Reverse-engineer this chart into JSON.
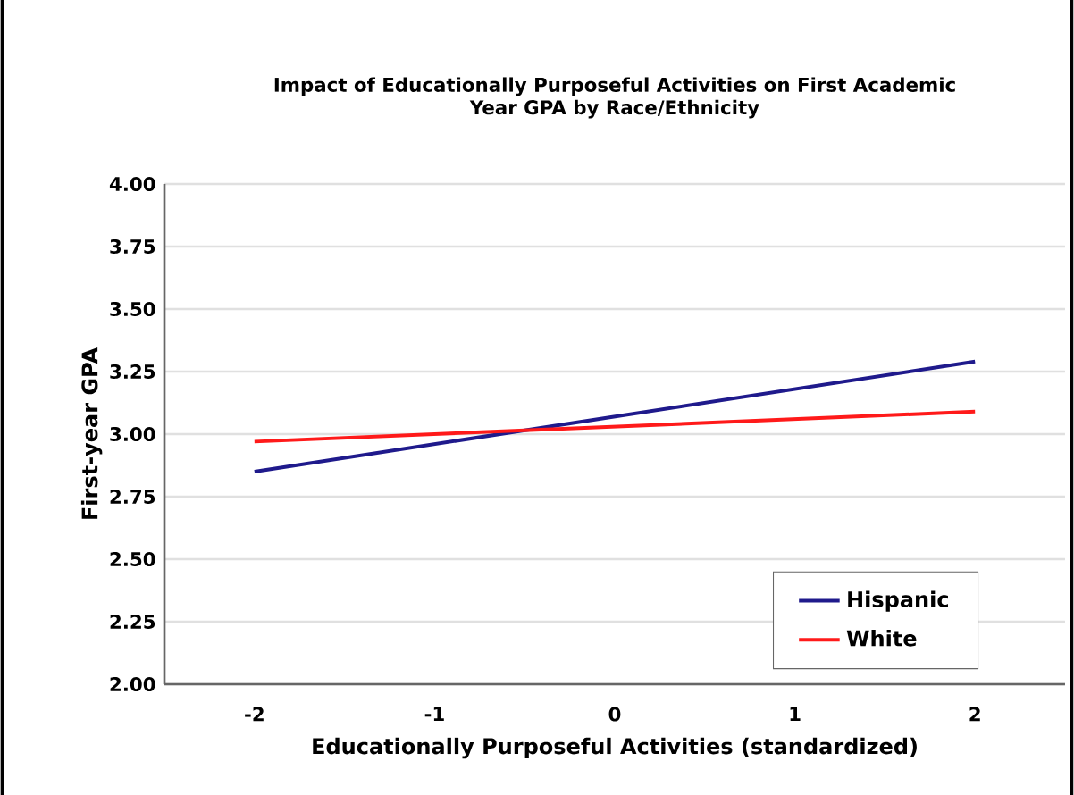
{
  "chart_data": {
    "type": "line",
    "title": "Impact of Educationally Purposeful Activities on First Academic Year GPA by Race/Ethnicity",
    "xlabel": "Educationally Purposeful Activities (standardized)",
    "ylabel": "First-year GPA",
    "x": [
      -2,
      2
    ],
    "series": [
      {
        "name": "Hispanic",
        "color": "#1f1a8c",
        "values": [
          2.85,
          3.29
        ]
      },
      {
        "name": "White",
        "color": "#ff1a1a",
        "values": [
          2.97,
          3.09
        ]
      }
    ],
    "xlim": [
      -2.5,
      2.5
    ],
    "xticks": [
      -2,
      -1,
      0,
      1,
      2
    ],
    "ylim": [
      2.0,
      4.0
    ],
    "yticks": [
      {
        "value": 2.0,
        "label": "2.00"
      },
      {
        "value": 2.25,
        "label": "2.25"
      },
      {
        "value": 2.5,
        "label": "2.50"
      },
      {
        "value": 2.75,
        "label": "2.75"
      },
      {
        "value": 3.0,
        "label": "3.00"
      },
      {
        "value": 3.25,
        "label": "3.25"
      },
      {
        "value": 3.5,
        "label": "3.50"
      },
      {
        "value": 3.75,
        "label": "3.75"
      },
      {
        "value": 4.0,
        "label": "4.00"
      }
    ],
    "grid": "y",
    "legend": "bottom right",
    "marker": "none",
    "line_style": "solid"
  }
}
